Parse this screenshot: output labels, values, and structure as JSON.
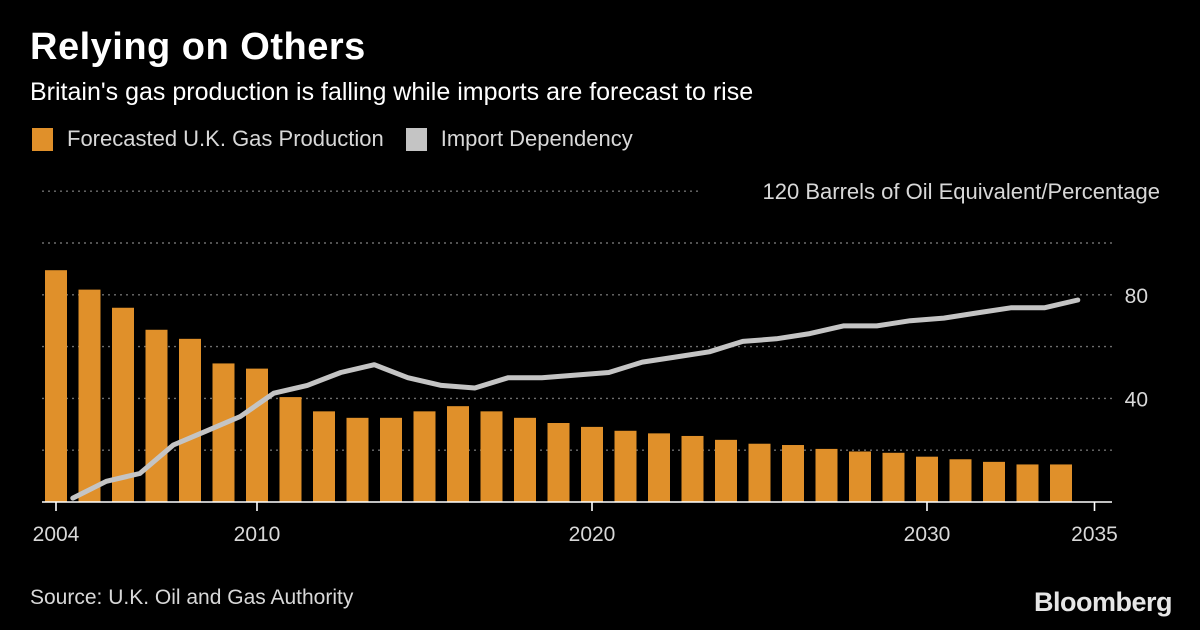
{
  "header": {
    "title": "Relying on Others",
    "subtitle": "Britain's gas production is falling while imports are forecast to rise"
  },
  "legend": [
    {
      "label": "Forecasted U.K. Gas Production",
      "color": "#e0902a"
    },
    {
      "label": "Import Dependency",
      "color": "#c4c4c4"
    }
  ],
  "footer": {
    "source": "Source: U.K. Oil and Gas Authority",
    "brand": "Bloomberg"
  },
  "chart_data": {
    "type": "bar",
    "ylabel": "120 Barrels of Oil Equivalent/Percentage",
    "ylim": [
      0,
      120
    ],
    "y_tick_labels": [
      {
        "value": 40,
        "label": "40"
      },
      {
        "value": 80,
        "label": "80"
      }
    ],
    "y_gridlines": [
      20,
      40,
      60,
      80,
      100,
      120
    ],
    "xlim": [
      2004,
      2035
    ],
    "x_tick_labels": [
      {
        "value": 2004,
        "label": "2004"
      },
      {
        "value": 2010,
        "label": "2010"
      },
      {
        "value": 2020,
        "label": "2020"
      },
      {
        "value": 2030,
        "label": "2030"
      },
      {
        "value": 2035,
        "label": "2035"
      }
    ],
    "grid": true,
    "legend_position": "top-left",
    "series": [
      {
        "name": "Forecasted U.K. Gas Production",
        "kind": "bar",
        "color": "#e0902a",
        "x": [
          2004,
          2005,
          2006,
          2007,
          2008,
          2009,
          2010,
          2011,
          2012,
          2013,
          2014,
          2015,
          2016,
          2017,
          2018,
          2019,
          2020,
          2021,
          2022,
          2023,
          2024,
          2025,
          2026,
          2027,
          2028,
          2029,
          2030,
          2031,
          2032,
          2033,
          2034
        ],
        "values": [
          89.5,
          82,
          75,
          66.5,
          63,
          53.5,
          51.5,
          40.5,
          35,
          32.5,
          32.5,
          35,
          37,
          35,
          32.5,
          30.5,
          29,
          27.5,
          26.5,
          25.5,
          24,
          22.5,
          22,
          20.5,
          19.5,
          19,
          17.5,
          16.5,
          15.5,
          14.5,
          14.5
        ]
      },
      {
        "name": "Import Dependency",
        "kind": "line",
        "color": "#c4c4c4",
        "x": [
          2004.5,
          2005.5,
          2006.5,
          2007.5,
          2008.5,
          2009.5,
          2010.5,
          2011.5,
          2012.5,
          2013.5,
          2014.5,
          2015.5,
          2016.5,
          2017.5,
          2018.5,
          2019.5,
          2020.5,
          2021.5,
          2022.5,
          2023.5,
          2024.5,
          2025.5,
          2026.5,
          2027.5,
          2028.5,
          2029.5,
          2030.5,
          2031.5,
          2032.5,
          2033.5,
          2034.5
        ],
        "values": [
          1.5,
          8,
          11,
          22,
          27.5,
          33,
          42,
          45,
          50,
          53,
          48,
          45,
          44,
          48,
          48,
          49,
          50,
          54,
          56,
          58,
          62,
          63,
          65,
          68,
          68,
          70,
          71,
          73,
          75,
          75,
          78
        ]
      }
    ]
  }
}
